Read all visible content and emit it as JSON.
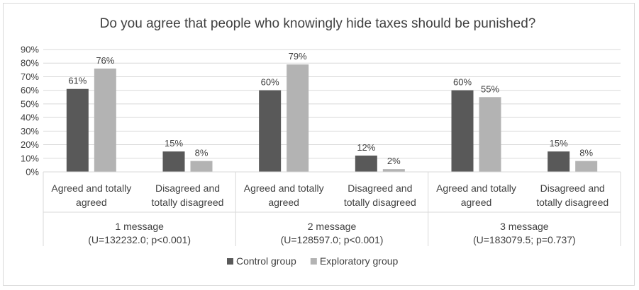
{
  "chart_data": {
    "type": "bar",
    "title": "Do you agree that people who knowingly hide taxes should be punished?",
    "ylim": [
      0,
      90
    ],
    "yticks": [
      "0%",
      "10%",
      "20%",
      "30%",
      "40%",
      "50%",
      "60%",
      "70%",
      "80%",
      "90%"
    ],
    "value_suffix": "%",
    "grid": true,
    "legend_position": "bottom",
    "groups": [
      {
        "label_lines": [
          "1 message",
          "(U=132232.0; p<0.001)"
        ],
        "categories": [
          {
            "label_lines": [
              "Agreed and totally",
              "agreed"
            ],
            "values": [
              61,
              76
            ]
          },
          {
            "label_lines": [
              "Disagreed and",
              "totally disagreed"
            ],
            "values": [
              15,
              8
            ]
          }
        ]
      },
      {
        "label_lines": [
          "2 message",
          "(U=128597.0; p<0.001)"
        ],
        "categories": [
          {
            "label_lines": [
              "Agreed and totally",
              "agreed"
            ],
            "values": [
              60,
              79
            ]
          },
          {
            "label_lines": [
              "Disagreed and",
              "totally disagreed"
            ],
            "values": [
              12,
              2
            ]
          }
        ]
      },
      {
        "label_lines": [
          "3 message",
          "(U=183079.5; p=0.737)"
        ],
        "categories": [
          {
            "label_lines": [
              "Agreed and totally",
              "agreed"
            ],
            "values": [
              60,
              55
            ]
          },
          {
            "label_lines": [
              "Disagreed and",
              "totally disagreed"
            ],
            "values": [
              15,
              8
            ]
          }
        ]
      }
    ],
    "series": [
      {
        "name": "Control group",
        "color": "#595959"
      },
      {
        "name": "Exploratory group",
        "color": "#b3b3b3"
      }
    ]
  }
}
